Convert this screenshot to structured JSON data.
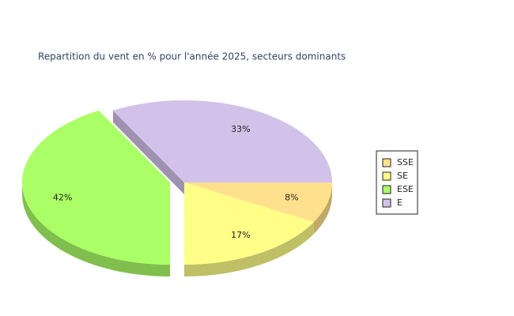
{
  "chart_data": {
    "type": "pie",
    "title": "Repartition du vent en % pour l'année 2025, secteurs dominants",
    "categories": [
      "SSE",
      "SE",
      "ESE",
      "E"
    ],
    "values": [
      8,
      17,
      42,
      33
    ],
    "value_labels": [
      "8%",
      "17%",
      "42%",
      "33%"
    ],
    "colors": [
      "#ffe08c",
      "#ffff88",
      "#aaff66",
      "#d2c2ea"
    ],
    "legend": "right"
  }
}
